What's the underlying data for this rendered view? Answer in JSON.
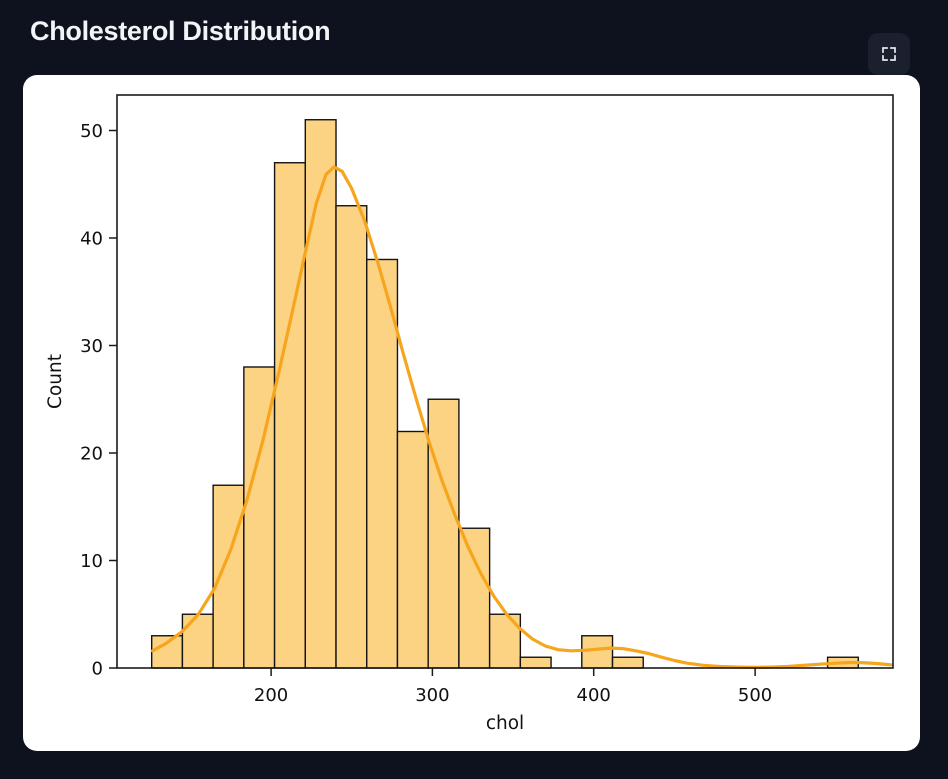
{
  "header": {
    "title": "Cholesterol Distribution"
  },
  "icons": {
    "fullscreen_button_icon": "expand-icon"
  },
  "colors": {
    "page_bg": "#0d121e",
    "title_text": "#f2f4f8",
    "button_bg": "#1a202e",
    "button_icon": "#e3e7ef",
    "card_bg": "#ffffff",
    "bar_fill": "#fcd283",
    "bar_edge": "#141414",
    "kde_line": "#f6a51c",
    "axis": "#1a1a1a",
    "tick_text": "#111111"
  },
  "chart_data": {
    "type": "bar",
    "subtype": "histogram_with_kde",
    "title": "Cholesterol Distribution",
    "xlabel": "chol",
    "ylabel": "Count",
    "grid": false,
    "legend": false,
    "bins": {
      "start": 126,
      "width": 19.043,
      "count": 23,
      "end": 564
    },
    "bin_counts": [
      3,
      5,
      17,
      28,
      47,
      51,
      43,
      38,
      22,
      25,
      13,
      5,
      1,
      0,
      3,
      1,
      0,
      0,
      0,
      0,
      0,
      0,
      1
    ],
    "total_count": 303,
    "x_ticks": [
      200,
      300,
      400,
      500
    ],
    "y_ticks": [
      0,
      10,
      20,
      30,
      40,
      50
    ],
    "xlim": [
      104.5,
      585.5
    ],
    "ylim": [
      0,
      53.3
    ],
    "kde_peak": {
      "x": 236,
      "y": 46.6
    },
    "kde_points": [
      [
        126.5,
        1.6
      ],
      [
        135,
        2.3
      ],
      [
        145,
        3.4
      ],
      [
        155,
        5.0
      ],
      [
        165,
        7.4
      ],
      [
        175,
        11.0
      ],
      [
        185,
        15.6
      ],
      [
        195,
        21.2
      ],
      [
        205,
        27.6
      ],
      [
        215,
        34.4
      ],
      [
        222,
        39.2
      ],
      [
        228,
        43.2
      ],
      [
        234,
        45.9
      ],
      [
        239,
        46.6
      ],
      [
        244,
        46.2
      ],
      [
        250,
        44.6
      ],
      [
        258,
        41.6
      ],
      [
        266,
        37.8
      ],
      [
        274,
        33.6
      ],
      [
        282,
        29.2
      ],
      [
        290,
        25.0
      ],
      [
        298,
        21.0
      ],
      [
        306,
        17.4
      ],
      [
        314,
        14.2
      ],
      [
        322,
        11.3
      ],
      [
        330,
        8.8
      ],
      [
        338,
        6.7
      ],
      [
        346,
        5.0
      ],
      [
        354,
        3.7
      ],
      [
        362,
        2.7
      ],
      [
        370,
        2.05
      ],
      [
        378,
        1.7
      ],
      [
        386,
        1.6
      ],
      [
        394,
        1.65
      ],
      [
        402,
        1.75
      ],
      [
        410,
        1.85
      ],
      [
        418,
        1.8
      ],
      [
        426,
        1.6
      ],
      [
        434,
        1.35
      ],
      [
        442,
        1.0
      ],
      [
        450,
        0.7
      ],
      [
        458,
        0.45
      ],
      [
        468,
        0.25
      ],
      [
        478,
        0.14
      ],
      [
        490,
        0.08
      ],
      [
        500,
        0.06
      ],
      [
        510,
        0.08
      ],
      [
        520,
        0.14
      ],
      [
        530,
        0.24
      ],
      [
        540,
        0.35
      ],
      [
        550,
        0.45
      ],
      [
        558,
        0.5
      ],
      [
        566,
        0.5
      ],
      [
        575,
        0.42
      ],
      [
        584,
        0.3
      ]
    ]
  }
}
